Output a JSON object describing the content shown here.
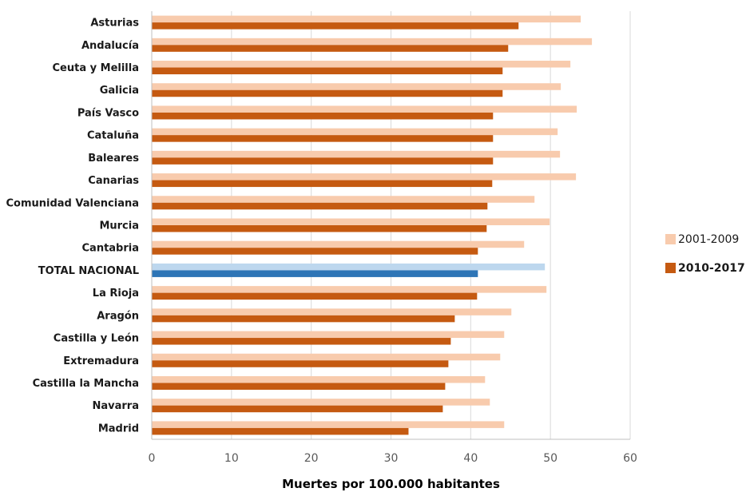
{
  "chart_data": {
    "type": "bar",
    "orientation": "horizontal",
    "categories": [
      "Asturias",
      "Andalucía",
      "Ceuta y Melilla",
      "Galicia",
      "País Vasco",
      "Cataluña",
      "Baleares",
      "Canarias",
      "Comunidad Valenciana",
      "Murcia",
      "Cantabria",
      "TOTAL NACIONAL",
      "La Rioja",
      "Aragón",
      "Castilla y León",
      "Extremadura",
      "Castilla la Mancha",
      "Navarra",
      "Madrid"
    ],
    "series": [
      {
        "name": "2001-2009",
        "color": "#f8cbad",
        "values": [
          53.8,
          55.2,
          52.5,
          51.3,
          53.3,
          50.9,
          51.2,
          53.2,
          48.0,
          49.9,
          46.7,
          49.3,
          49.5,
          45.1,
          44.2,
          43.7,
          41.8,
          42.4,
          44.2
        ]
      },
      {
        "name": "2010-2017",
        "color": "#c55a11",
        "values": [
          46.0,
          44.7,
          44.0,
          44.0,
          42.8,
          42.8,
          42.8,
          42.7,
          42.1,
          42.0,
          40.9,
          40.9,
          40.8,
          38.0,
          37.5,
          37.2,
          36.8,
          36.5,
          32.2
        ]
      }
    ],
    "highlight": {
      "category": "TOTAL NACIONAL",
      "colors": {
        "2001-2009": "#bdd7ee",
        "2010-2017": "#2e75b6"
      }
    },
    "xlabel": "Muertes por 100.000 habitantes",
    "ylabel": "",
    "xlim": [
      0,
      60
    ],
    "xticks": [
      "0",
      "10",
      "20",
      "30",
      "40",
      "50",
      "60"
    ],
    "grid": "vertical",
    "legend_position": "right"
  }
}
